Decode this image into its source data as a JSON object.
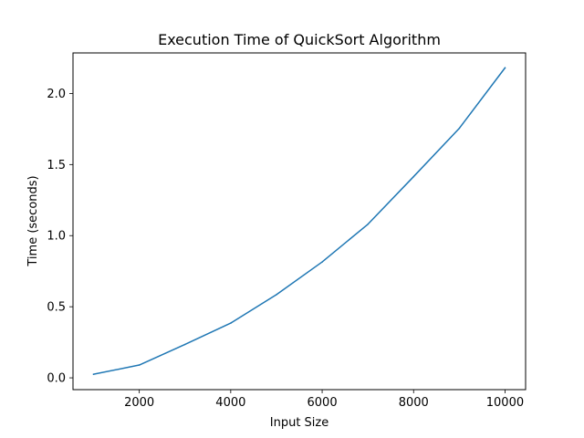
{
  "chart_data": {
    "type": "line",
    "title": "Execution Time of QuickSort Algorithm",
    "xlabel": "Input Size",
    "ylabel": "Time (seconds)",
    "xlim": [
      550,
      10450
    ],
    "ylim": [
      -0.083,
      2.285
    ],
    "x_ticks": [
      2000,
      4000,
      6000,
      8000,
      10000
    ],
    "x_tick_labels": [
      "2000",
      "4000",
      "6000",
      "8000",
      "10000"
    ],
    "y_ticks": [
      0.0,
      0.5,
      1.0,
      1.5,
      2.0
    ],
    "y_tick_labels": [
      "0.0",
      "0.5",
      "1.0",
      "1.5",
      "2.0"
    ],
    "grid": false,
    "series": [
      {
        "color": "#1f77b4",
        "x": [
          1000,
          2000,
          3000,
          4000,
          5000,
          6000,
          7000,
          8000,
          9000,
          10000
        ],
        "y": [
          0.025,
          0.09,
          0.235,
          0.385,
          0.585,
          0.815,
          1.08,
          1.415,
          1.755,
          2.18
        ]
      }
    ]
  }
}
